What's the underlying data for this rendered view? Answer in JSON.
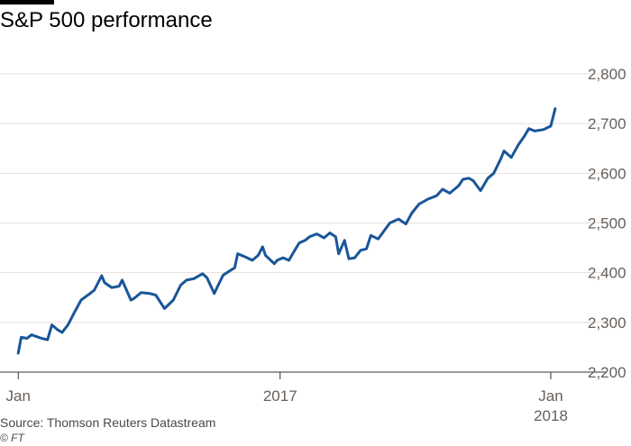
{
  "title": "S&P 500 performance",
  "source": "Source: Thomson Reuters Datastream",
  "credit": "© FT",
  "colors": {
    "line": "#1a5598",
    "grid": "#e7dfd9",
    "axis": "#333333",
    "text": "#66605c"
  },
  "chart_data": {
    "type": "line",
    "title": "S&P 500 performance",
    "ylim": [
      2200,
      2800
    ],
    "yticks": [
      2200,
      2300,
      2400,
      2500,
      2600,
      2700,
      2800
    ],
    "ytick_labels": [
      "2,200",
      "2,300",
      "2,400",
      "2,500",
      "2,600",
      "2,700",
      "2,800"
    ],
    "y_axis_side": "right",
    "grid": true,
    "xlim": [
      "2017-01-01",
      "2018-01-10"
    ],
    "xticks": [
      {
        "date": "2017-01-03",
        "label": "Jan",
        "sublabel": ""
      },
      {
        "date": "2017-07-01",
        "label": "2017",
        "sublabel": ""
      },
      {
        "date": "2018-01-02",
        "label": "Jan",
        "sublabel": "2018"
      }
    ],
    "series": [
      {
        "x": [
          "2017-01-03",
          "2017-01-05",
          "2017-01-09",
          "2017-01-12",
          "2017-01-17",
          "2017-01-19",
          "2017-01-23",
          "2017-01-26",
          "2017-01-30",
          "2017-02-02",
          "2017-02-06",
          "2017-02-10",
          "2017-02-15",
          "2017-02-21",
          "2017-02-24",
          "2017-03-01",
          "2017-03-03",
          "2017-03-08",
          "2017-03-13",
          "2017-03-15",
          "2017-03-21",
          "2017-03-23",
          "2017-03-28",
          "2017-04-03",
          "2017-04-07",
          "2017-04-13",
          "2017-04-19",
          "2017-04-24",
          "2017-04-28",
          "2017-05-03",
          "2017-05-09",
          "2017-05-12",
          "2017-05-17",
          "2017-05-18",
          "2017-05-23",
          "2017-05-31",
          "2017-06-02",
          "2017-06-07",
          "2017-06-12",
          "2017-06-16",
          "2017-06-19",
          "2017-06-21",
          "2017-06-27",
          "2017-06-29",
          "2017-07-03",
          "2017-07-07",
          "2017-07-11",
          "2017-07-14",
          "2017-07-18",
          "2017-07-21",
          "2017-07-26",
          "2017-07-31",
          "2017-08-04",
          "2017-08-08",
          "2017-08-10",
          "2017-08-14",
          "2017-08-17",
          "2017-08-21",
          "2017-08-25",
          "2017-08-29",
          "2017-09-01",
          "2017-09-06",
          "2017-09-11",
          "2017-09-14",
          "2017-09-20",
          "2017-09-25",
          "2017-09-29",
          "2017-10-04",
          "2017-10-10",
          "2017-10-16",
          "2017-10-20",
          "2017-10-25",
          "2017-10-31",
          "2017-11-03",
          "2017-11-07",
          "2017-11-10",
          "2017-11-15",
          "2017-11-20",
          "2017-11-24",
          "2017-11-29",
          "2017-12-01",
          "2017-12-06",
          "2017-12-11",
          "2017-12-15",
          "2017-12-18",
          "2017-12-22",
          "2017-12-28",
          "2018-01-02",
          "2018-01-05"
        ],
        "values": [
          2238,
          2270,
          2268,
          2275,
          2270,
          2268,
          2265,
          2295,
          2285,
          2280,
          2295,
          2318,
          2345,
          2358,
          2365,
          2394,
          2380,
          2370,
          2373,
          2385,
          2345,
          2348,
          2360,
          2358,
          2355,
          2328,
          2345,
          2375,
          2385,
          2388,
          2398,
          2390,
          2358,
          2365,
          2395,
          2410,
          2438,
          2432,
          2425,
          2435,
          2452,
          2435,
          2418,
          2425,
          2430,
          2425,
          2445,
          2460,
          2465,
          2472,
          2478,
          2470,
          2480,
          2472,
          2438,
          2465,
          2428,
          2430,
          2445,
          2448,
          2475,
          2468,
          2488,
          2500,
          2508,
          2498,
          2520,
          2538,
          2548,
          2555,
          2568,
          2560,
          2575,
          2588,
          2590,
          2585,
          2565,
          2590,
          2600,
          2630,
          2645,
          2632,
          2658,
          2675,
          2690,
          2685,
          2688,
          2695,
          2730
        ]
      }
    ]
  }
}
